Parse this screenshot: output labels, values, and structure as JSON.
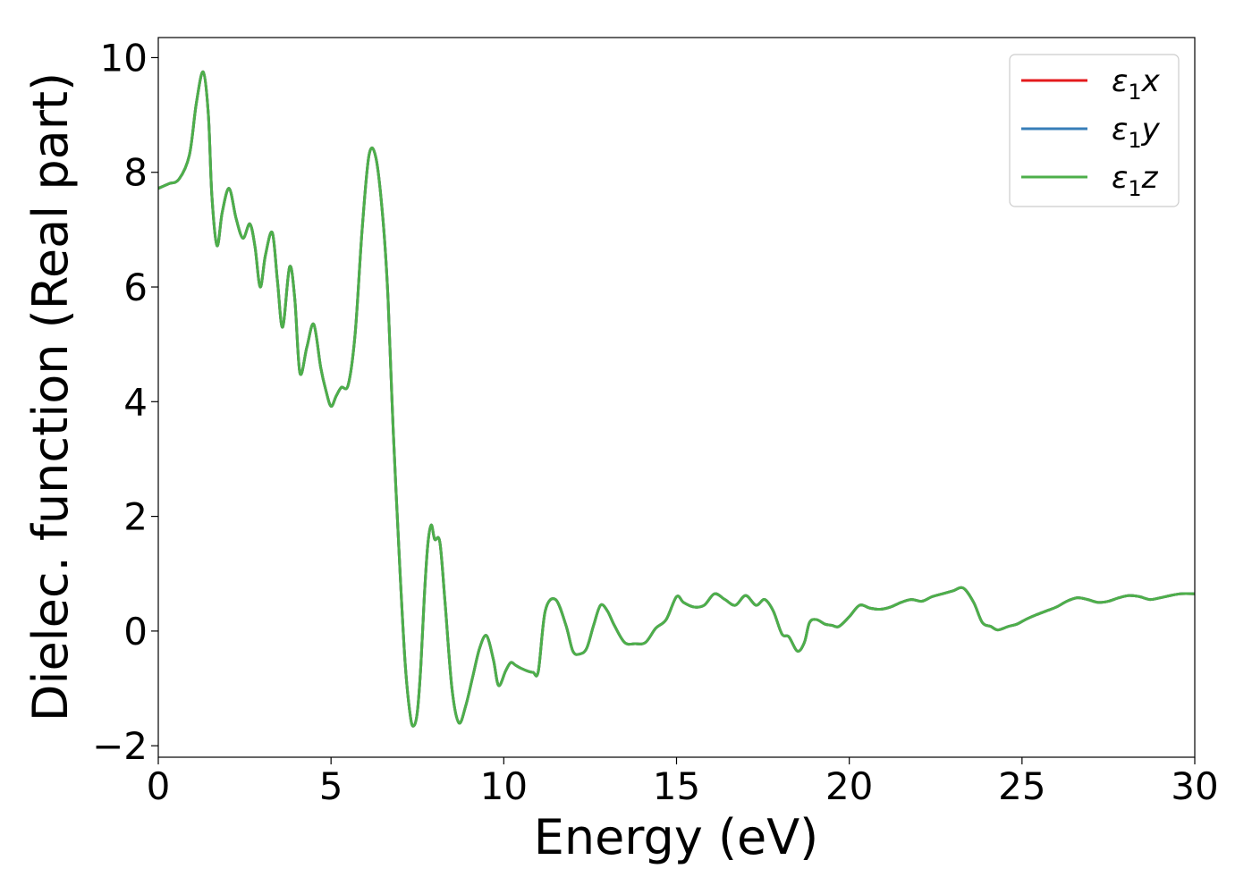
{
  "chart_data": {
    "type": "line",
    "title": "",
    "xlabel": "Energy (eV)",
    "ylabel": "Dielec. function (Real part)",
    "xlim": [
      0,
      30
    ],
    "ylim": [
      -2.2,
      10.35
    ],
    "xticks": [
      0,
      5,
      10,
      15,
      20,
      25,
      30
    ],
    "xtick_labels": [
      "0",
      "5",
      "10",
      "15",
      "20",
      "25",
      "30"
    ],
    "yticks": [
      -2,
      0,
      2,
      4,
      6,
      8,
      10
    ],
    "ytick_labels": [
      "−2",
      "0",
      "2",
      "4",
      "6",
      "8",
      "10"
    ],
    "grid": false,
    "legend_position": "top-right",
    "x": [
      0,
      0.3,
      0.6,
      0.9,
      1.1,
      1.3,
      1.45,
      1.55,
      1.7,
      1.85,
      2.05,
      2.25,
      2.45,
      2.65,
      2.8,
      2.95,
      3.1,
      3.3,
      3.45,
      3.6,
      3.8,
      3.95,
      4.1,
      4.3,
      4.5,
      4.7,
      4.85,
      5.0,
      5.15,
      5.3,
      5.5,
      5.7,
      5.9,
      6.1,
      6.3,
      6.5,
      6.65,
      6.8,
      7.0,
      7.15,
      7.3,
      7.4,
      7.5,
      7.6,
      7.7,
      7.8,
      7.9,
      8.0,
      8.15,
      8.3,
      8.5,
      8.7,
      8.9,
      9.1,
      9.3,
      9.5,
      9.7,
      9.85,
      10.05,
      10.2,
      10.35,
      10.5,
      10.7,
      10.85,
      11.0,
      11.2,
      11.5,
      11.8,
      12.0,
      12.2,
      12.4,
      12.6,
      12.8,
      13.0,
      13.2,
      13.5,
      13.8,
      14.1,
      14.4,
      14.7,
      15.0,
      15.2,
      15.5,
      15.8,
      16.1,
      16.4,
      16.7,
      17.0,
      17.3,
      17.55,
      17.8,
      18.05,
      18.25,
      18.5,
      18.7,
      18.85,
      19.05,
      19.3,
      19.5,
      19.7,
      20.0,
      20.3,
      20.6,
      20.9,
      21.2,
      21.5,
      21.8,
      22.1,
      22.4,
      22.7,
      23.0,
      23.3,
      23.6,
      23.85,
      24.1,
      24.3,
      24.6,
      24.85,
      25.1,
      25.4,
      25.7,
      26.0,
      26.3,
      26.6,
      26.9,
      27.2,
      27.5,
      27.8,
      28.1,
      28.4,
      28.7,
      29.0,
      29.3,
      29.6,
      30.0
    ],
    "y": [
      7.72,
      7.8,
      7.88,
      8.3,
      9.2,
      9.75,
      9.0,
      7.6,
      6.72,
      7.3,
      7.72,
      7.2,
      6.85,
      7.1,
      6.7,
      6.0,
      6.55,
      6.95,
      6.1,
      5.3,
      6.35,
      5.8,
      4.5,
      4.95,
      5.35,
      4.6,
      4.2,
      3.92,
      4.1,
      4.25,
      4.3,
      5.2,
      7.0,
      8.3,
      8.25,
      7.2,
      5.8,
      3.5,
      1.0,
      -0.6,
      -1.5,
      -1.65,
      -1.4,
      -0.6,
      0.6,
      1.5,
      1.85,
      1.6,
      1.55,
      0.5,
      -1.0,
      -1.6,
      -1.3,
      -0.8,
      -0.3,
      -0.08,
      -0.5,
      -0.95,
      -0.7,
      -0.55,
      -0.6,
      -0.65,
      -0.7,
      -0.72,
      -0.7,
      0.35,
      0.55,
      0.1,
      -0.35,
      -0.4,
      -0.3,
      0.1,
      0.45,
      0.35,
      0.1,
      -0.2,
      -0.22,
      -0.2,
      0.05,
      0.2,
      0.6,
      0.5,
      0.42,
      0.45,
      0.65,
      0.55,
      0.45,
      0.62,
      0.45,
      0.55,
      0.35,
      -0.05,
      -0.1,
      -0.35,
      -0.2,
      0.15,
      0.2,
      0.12,
      0.1,
      0.08,
      0.25,
      0.45,
      0.4,
      0.38,
      0.42,
      0.5,
      0.55,
      0.52,
      0.6,
      0.65,
      0.7,
      0.75,
      0.5,
      0.15,
      0.08,
      0.02,
      0.08,
      0.12,
      0.2,
      0.28,
      0.35,
      0.42,
      0.52,
      0.58,
      0.55,
      0.5,
      0.52,
      0.58,
      0.62,
      0.6,
      0.55,
      0.58,
      0.62,
      0.65,
      0.65
    ],
    "series": [
      {
        "name": "ε₁x",
        "name_main": "ε",
        "name_sub": "1",
        "name_suffix": "x",
        "color": "#e41a1c",
        "draw_order": 1
      },
      {
        "name": "ε₁y",
        "name_main": "ε",
        "name_sub": "1",
        "name_suffix": "y",
        "color": "#377eb8",
        "draw_order": 2
      },
      {
        "name": "ε₁z",
        "name_main": "ε",
        "name_sub": "1",
        "name_suffix": "z",
        "color": "#4daf4a",
        "draw_order": 3
      }
    ]
  }
}
